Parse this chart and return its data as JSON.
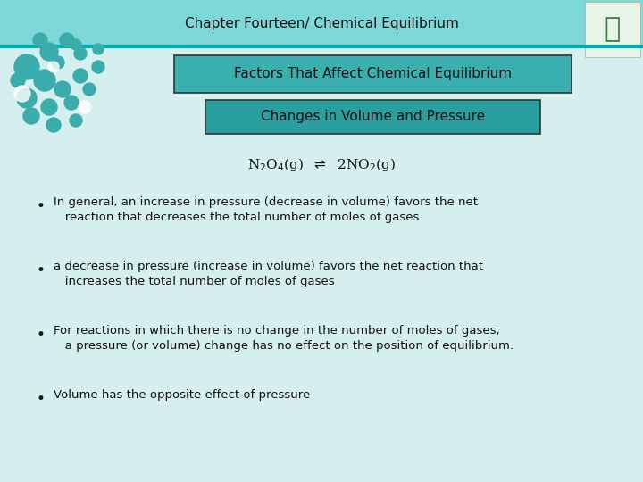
{
  "title": "Chapter Fourteen/ Chemical Equilibrium",
  "subtitle1": "Factors That Affect Chemical Equilibrium",
  "subtitle2": "Changes in Volume and Pressure",
  "bullet_points": [
    "In general, an increase in pressure (decrease in volume) favors the net\n   reaction that decreases the total number of moles of gases.",
    "a decrease in pressure (increase in volume) favors the net reaction that\n   increases the total number of moles of gases",
    "For reactions in which there is no change in the number of moles of gases,\n   a pressure (or volume) change has no effect on the position of equilibrium.",
    "Volume has the opposite effect of pressure"
  ],
  "header_bg": "#7DD8D8",
  "header_border_bottom": "#00B0B0",
  "subtitle1_bg": "#3AAFAF",
  "subtitle2_bg": "#2A9F9F",
  "slide_bg_top": "#C8ECEC",
  "slide_bg": "#D5EEEE",
  "text_color": "#111111",
  "title_fontsize": 11,
  "subtitle_fontsize": 11,
  "body_fontsize": 9.5,
  "equation_fontsize": 11
}
